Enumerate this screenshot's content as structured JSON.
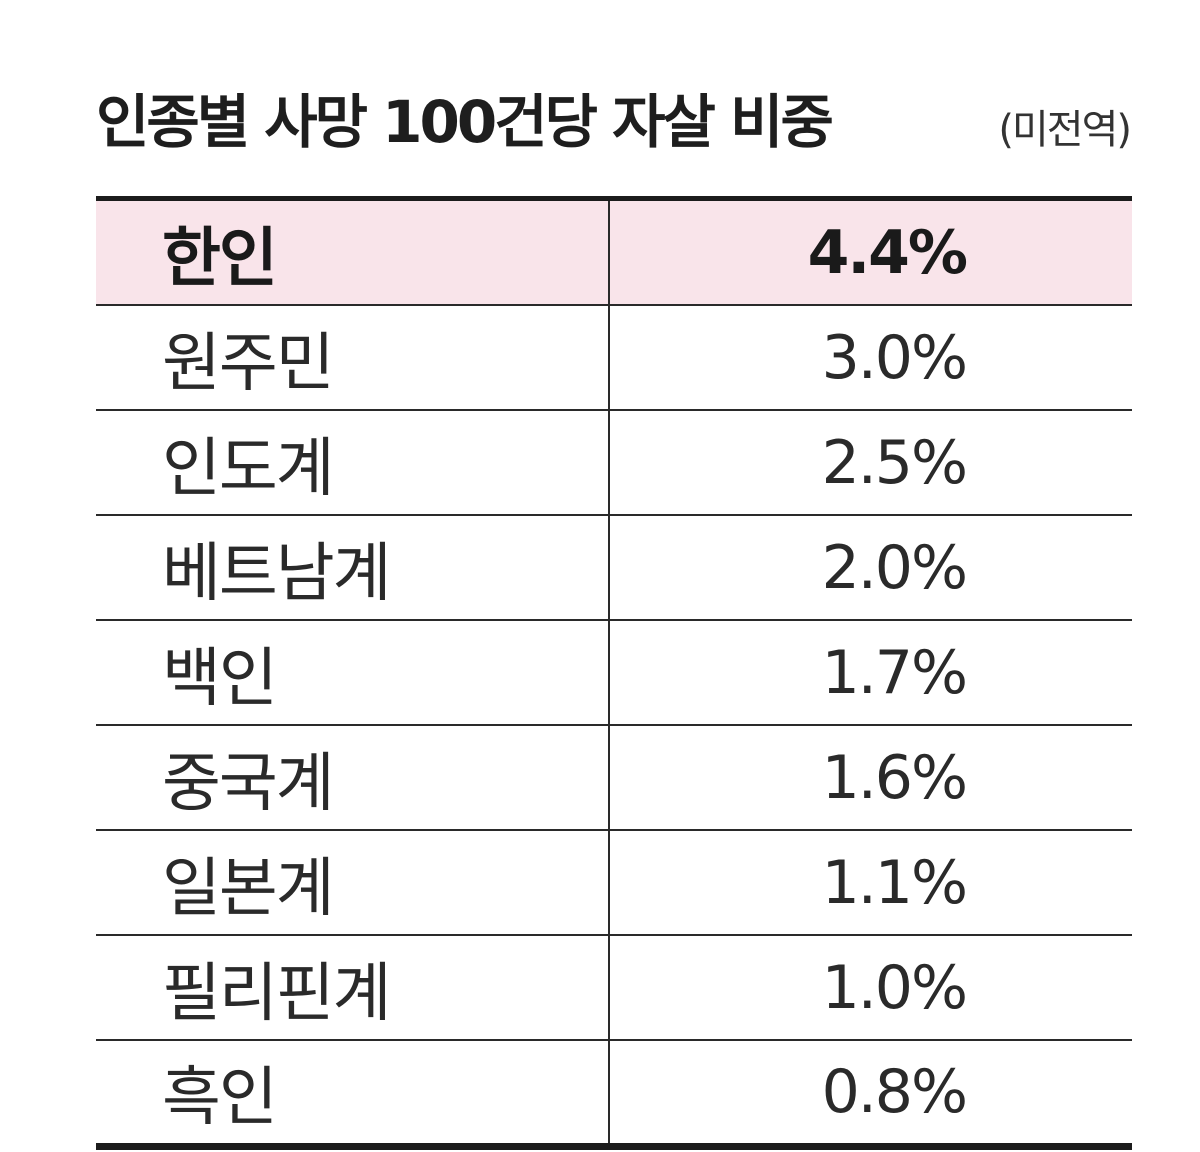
{
  "title": "인종별 사망 100건당 자살 비중",
  "subtitle": "(미전역)",
  "chart_data": {
    "type": "table",
    "title": "인종별 사망 100건당 자살 비중",
    "subtitle": "(미전역)",
    "rows": [
      {
        "label": "한인",
        "value": 4.4,
        "display": "4.4%",
        "highlight": true
      },
      {
        "label": "원주민",
        "value": 3.0,
        "display": "3.0%",
        "highlight": false
      },
      {
        "label": "인도계",
        "value": 2.5,
        "display": "2.5%",
        "highlight": false
      },
      {
        "label": "베트남계",
        "value": 2.0,
        "display": "2.0%",
        "highlight": false
      },
      {
        "label": "백인",
        "value": 1.7,
        "display": "1.7%",
        "highlight": false
      },
      {
        "label": "중국계",
        "value": 1.6,
        "display": "1.6%",
        "highlight": false
      },
      {
        "label": "일본계",
        "value": 1.1,
        "display": "1.1%",
        "highlight": false
      },
      {
        "label": "필리핀계",
        "value": 1.0,
        "display": "1.0%",
        "highlight": false
      },
      {
        "label": "흑인",
        "value": 0.8,
        "display": "0.8%",
        "highlight": false
      }
    ]
  },
  "colors": {
    "highlight_row": "#f9e4ea",
    "rule": "#1c1c1c",
    "text": "#2a2a2a"
  }
}
